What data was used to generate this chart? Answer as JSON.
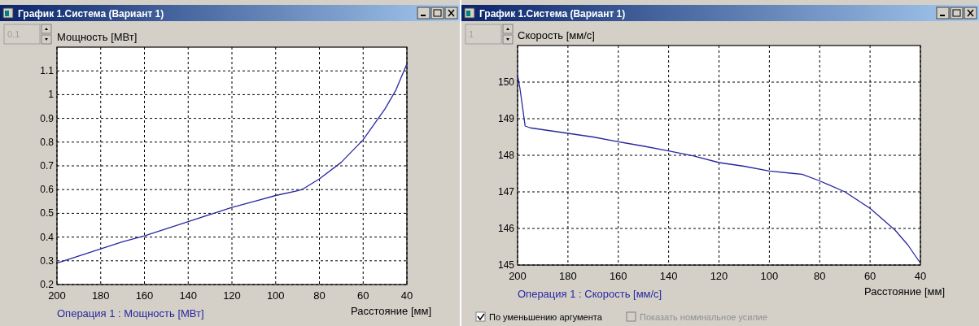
{
  "chart_data": [
    {
      "type": "line",
      "title": "График 1.Система (Вариант 1)",
      "ylabel": "Мощность [МВт]",
      "xlabel": "Расстояние [мм]",
      "annotations": [
        "0.1"
      ],
      "xlim": [
        200,
        40
      ],
      "xticks": [
        200,
        180,
        160,
        140,
        120,
        100,
        80,
        60,
        40
      ],
      "ylim": [
        0.2,
        1.2
      ],
      "yticks": [
        0.2,
        0.3,
        0.4,
        0.5,
        0.6,
        0.7,
        0.8,
        0.9,
        1,
        1.1
      ],
      "grid": true,
      "legend": "bottom left",
      "line_style": "solid",
      "series": [
        {
          "name": "Операция 1 : Мощность [МВт]",
          "color": "#2828a0",
          "x": [
            200,
            190,
            180,
            170,
            160,
            150,
            140,
            130,
            120,
            110,
            100,
            90,
            88,
            80,
            70,
            60,
            50,
            45,
            40
          ],
          "values": [
            0.29,
            0.32,
            0.35,
            0.38,
            0.405,
            0.435,
            0.465,
            0.495,
            0.525,
            0.55,
            0.575,
            0.595,
            0.6,
            0.645,
            0.715,
            0.81,
            0.94,
            1.02,
            1.13
          ]
        }
      ]
    },
    {
      "type": "line",
      "title": "График 1.Система (Вариант 1)",
      "ylabel": "Скорость [мм/с]",
      "xlabel": "Расстояние [мм]",
      "annotations": [
        "1",
        "По уменьшению аргумента",
        "Показать номинальное усилие"
      ],
      "xlim": [
        200,
        40
      ],
      "xticks": [
        200,
        180,
        160,
        140,
        120,
        100,
        80,
        60,
        40
      ],
      "ylim": [
        145,
        151
      ],
      "yticks": [
        145,
        146,
        147,
        148,
        149,
        150
      ],
      "grid": true,
      "legend": "bottom left",
      "line_style": "solid",
      "series": [
        {
          "name": "Операция 1 : Скорость [мм/с]",
          "color": "#2828a0",
          "x": [
            200,
            199,
            197,
            195,
            190,
            180,
            170,
            160,
            150,
            140,
            130,
            120,
            110,
            100,
            90,
            87,
            80,
            70,
            60,
            50,
            45,
            40
          ],
          "values": [
            150.2,
            149.8,
            148.8,
            148.75,
            148.7,
            148.6,
            148.5,
            148.37,
            148.25,
            148.12,
            147.98,
            147.8,
            147.7,
            147.57,
            147.5,
            147.48,
            147.3,
            147.0,
            146.55,
            145.95,
            145.55,
            145.05
          ]
        }
      ]
    }
  ]
}
